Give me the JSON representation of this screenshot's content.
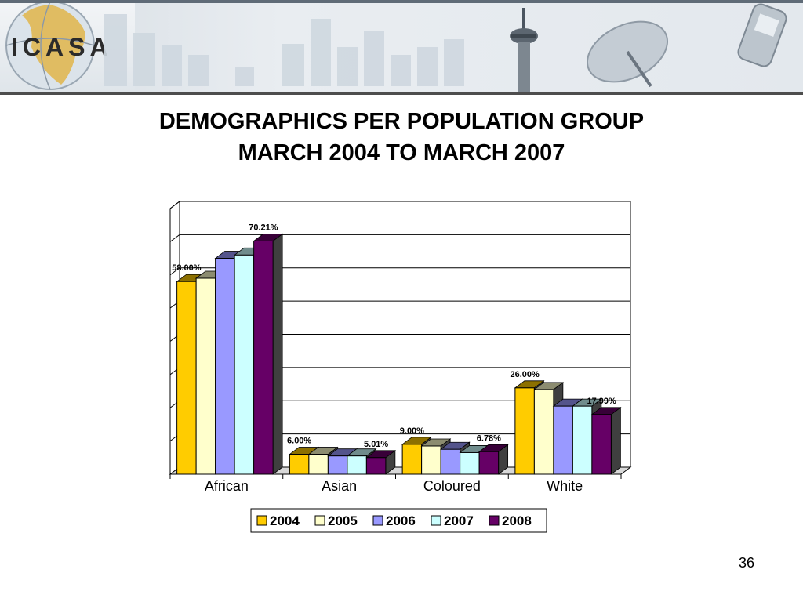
{
  "banner": {
    "logo_text": "ICASA",
    "top_stripe_color": "#5f6b77",
    "accent_color": "#e0b54a"
  },
  "title_lines": [
    "DEMOGRAPHICS PER POPULATION GROUP",
    "MARCH 2004 TO MARCH 2007"
  ],
  "chart_data": {
    "type": "bar",
    "style": "3d-clustered-column",
    "categories": [
      "African",
      "Asian",
      "Coloured",
      "White"
    ],
    "series": [
      {
        "name": "2004",
        "color": "#ffcc00",
        "values": [
          58.0,
          6.0,
          9.0,
          26.0
        ]
      },
      {
        "name": "2005",
        "color": "#ffffcc",
        "values": [
          59.0,
          6.0,
          8.5,
          25.5
        ]
      },
      {
        "name": "2006",
        "color": "#9999ff",
        "values": [
          65.0,
          5.5,
          7.5,
          20.5
        ]
      },
      {
        "name": "2007",
        "color": "#ccffff",
        "values": [
          66.0,
          5.5,
          6.5,
          20.5
        ]
      },
      {
        "name": "2008",
        "color": "#660066",
        "values": [
          70.21,
          5.01,
          6.78,
          17.99
        ]
      }
    ],
    "data_labels": [
      {
        "category": 0,
        "series": 0,
        "text": "58.00%"
      },
      {
        "category": 0,
        "series": 4,
        "text": "70.21%"
      },
      {
        "category": 1,
        "series": 0,
        "text": "6.00%"
      },
      {
        "category": 1,
        "series": 4,
        "text": "5.01%"
      },
      {
        "category": 2,
        "series": 0,
        "text": "9.00%"
      },
      {
        "category": 2,
        "series": 4,
        "text": "6.78%"
      },
      {
        "category": 3,
        "series": 0,
        "text": "26.00%"
      },
      {
        "category": 3,
        "series": 4,
        "text": "17.99%"
      }
    ],
    "ylim": [
      0,
      80
    ],
    "y_gridline_step": 10,
    "grid": true,
    "legend_position": "bottom"
  },
  "page_number": "36"
}
